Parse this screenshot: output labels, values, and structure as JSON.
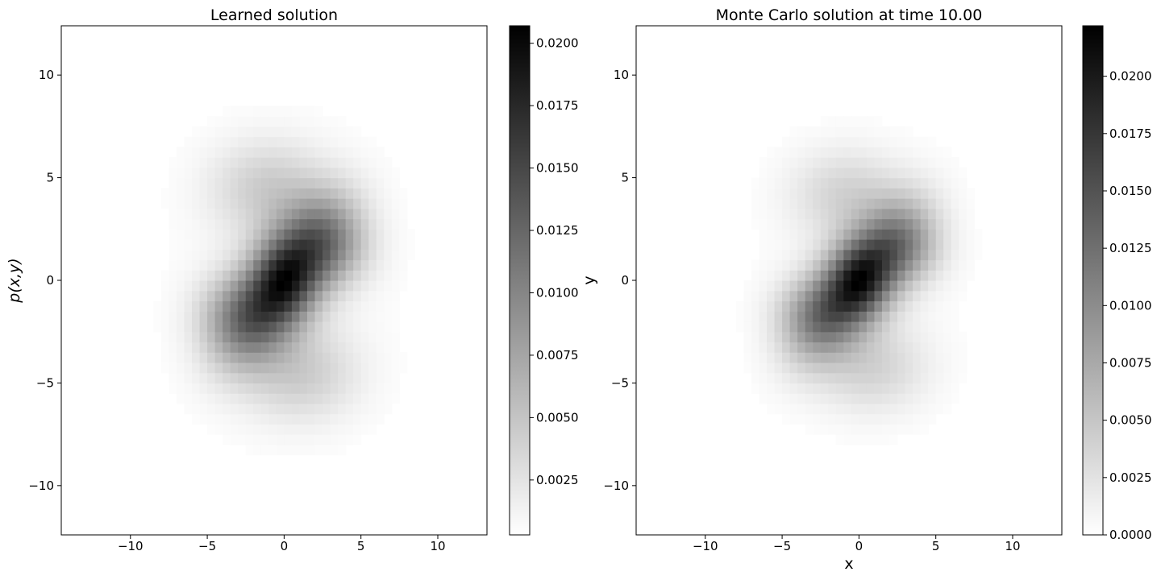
{
  "chart_data": [
    {
      "type": "heatmap",
      "title": "Learned solution",
      "xlabel": "",
      "ylabel": "p(x,y)",
      "xlim": [
        -14.5,
        13.2
      ],
      "ylim": [
        -12.4,
        12.4
      ],
      "xticks": [
        -10,
        -5,
        0,
        5,
        10
      ],
      "yticks": [
        -10,
        -5,
        0,
        5,
        10
      ],
      "grid": false,
      "colormap": "white-to-black",
      "cell_size": 0.5,
      "density_max": 0.0207,
      "colorbar": {
        "min": 0.0003,
        "max": 0.0207,
        "ticks": [
          0.0025,
          0.005,
          0.0075,
          0.01,
          0.0125,
          0.015,
          0.0175,
          0.02
        ],
        "tick_labels": [
          "0.0025",
          "0.0050",
          "0.0075",
          "0.0100",
          "0.0125",
          "0.0150",
          "0.0175",
          "0.0200"
        ]
      },
      "components": [
        {
          "center": [
            -1.5,
            -1.5
          ],
          "sigma": [
            2.3,
            1.5
          ],
          "rotation_deg": 35,
          "weight": 1.0
        },
        {
          "center": [
            1.5,
            1.5
          ],
          "sigma": [
            2.3,
            1.5
          ],
          "rotation_deg": 35,
          "weight": 1.0
        },
        {
          "center": [
            0,
            0
          ],
          "sigma": [
            1.3,
            1.3
          ],
          "rotation_deg": 0,
          "weight": 0.5
        },
        {
          "center": [
            -1.0,
            4.5
          ],
          "sigma": [
            2.6,
            1.6
          ],
          "rotation_deg": 0,
          "weight": 0.35
        },
        {
          "center": [
            1.0,
            -4.5
          ],
          "sigma": [
            2.6,
            1.6
          ],
          "rotation_deg": 0,
          "weight": 0.35
        },
        {
          "center": [
            3.5,
            1.5
          ],
          "sigma": [
            1.8,
            1.3
          ],
          "rotation_deg": 0,
          "weight": 0.3
        },
        {
          "center": [
            -3.5,
            -1.5
          ],
          "sigma": [
            1.8,
            1.3
          ],
          "rotation_deg": 0,
          "weight": 0.3
        },
        {
          "center": [
            0,
            0
          ],
          "sigma": [
            4.8,
            4.8
          ],
          "rotation_deg": 0,
          "weight": 0.06
        }
      ]
    },
    {
      "type": "heatmap",
      "title": "Monte Carlo solution at time 10.00",
      "xlabel": "x",
      "ylabel": "y",
      "xlim": [
        -14.5,
        13.2
      ],
      "ylim": [
        -12.4,
        12.4
      ],
      "xticks": [
        -10,
        -5,
        0,
        5,
        10
      ],
      "yticks": [
        -10,
        -5,
        0,
        5,
        10
      ],
      "grid": false,
      "colormap": "white-to-black",
      "cell_size": 0.5,
      "density_max": 0.0222,
      "colorbar": {
        "min": 0.0,
        "max": 0.0222,
        "ticks": [
          0,
          0.0025,
          0.005,
          0.0075,
          0.01,
          0.0125,
          0.015,
          0.0175,
          0.02
        ],
        "tick_labels": [
          "0.0000",
          "0.0025",
          "0.0050",
          "0.0075",
          "0.0100",
          "0.0125",
          "0.0150",
          "0.0175",
          "0.0200"
        ]
      },
      "components": [
        {
          "center": [
            -1.5,
            -1.2
          ],
          "sigma": [
            2.3,
            1.4
          ],
          "rotation_deg": 38,
          "weight": 1.0
        },
        {
          "center": [
            1.5,
            1.2
          ],
          "sigma": [
            2.3,
            1.4
          ],
          "rotation_deg": 38,
          "weight": 1.0
        },
        {
          "center": [
            0,
            0
          ],
          "sigma": [
            1.2,
            1.2
          ],
          "rotation_deg": 0,
          "weight": 0.5
        },
        {
          "center": [
            -0.8,
            4.2
          ],
          "sigma": [
            2.5,
            1.5
          ],
          "rotation_deg": 0,
          "weight": 0.32
        },
        {
          "center": [
            0.8,
            -4.2
          ],
          "sigma": [
            2.5,
            1.5
          ],
          "rotation_deg": 0,
          "weight": 0.32
        },
        {
          "center": [
            3.5,
            1.5
          ],
          "sigma": [
            1.7,
            1.2
          ],
          "rotation_deg": 0,
          "weight": 0.28
        },
        {
          "center": [
            -3.5,
            -1.5
          ],
          "sigma": [
            1.7,
            1.2
          ],
          "rotation_deg": 0,
          "weight": 0.28
        },
        {
          "center": [
            0,
            0
          ],
          "sigma": [
            4.5,
            4.5
          ],
          "rotation_deg": 0,
          "weight": 0.05
        }
      ]
    }
  ]
}
